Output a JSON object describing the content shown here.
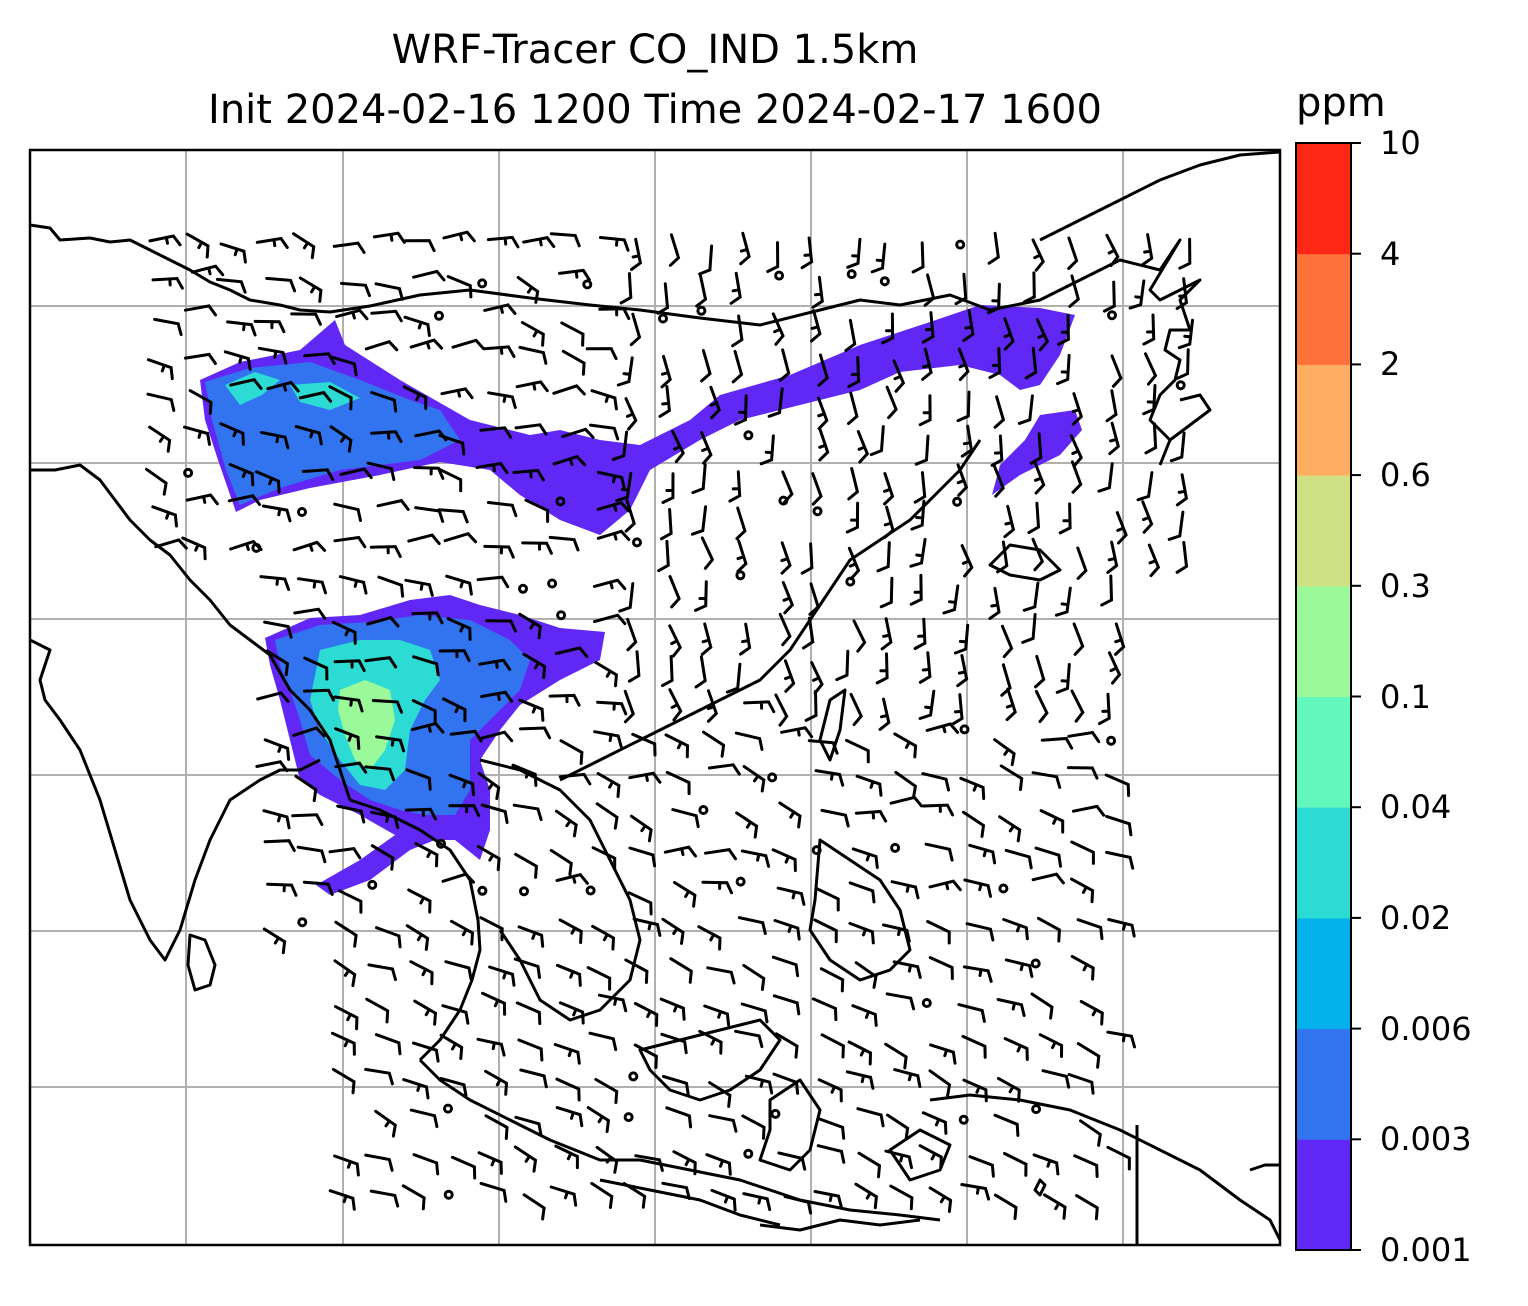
{
  "title_line1": "WRF-Tracer CO_IND 1.5km",
  "title_line2": "Init 2024-02-16 1200 Time 2024-02-17 1600",
  "colorbar": {
    "unit": "ppm",
    "ticks": [
      "0.001",
      "0.003",
      "0.006",
      "0.02",
      "0.04",
      "0.1",
      "0.3",
      "0.6",
      "2",
      "4",
      "10"
    ],
    "colors": [
      "#6128f5",
      "#3273f0",
      "#05b1eb",
      "#2cdbd4",
      "#61f7bd",
      "#9afa9a",
      "#d0e184",
      "#feae62",
      "#ff713b",
      "#fe2716"
    ]
  },
  "map_layers": {
    "gridlines": "on",
    "coastlines": "black",
    "plume_colors": {
      "outer": "#6128f5",
      "mid": "#3273f0",
      "inner": "#2cdbd4",
      "core": "#9afa9a"
    },
    "wind_symbol": "barbs"
  }
}
